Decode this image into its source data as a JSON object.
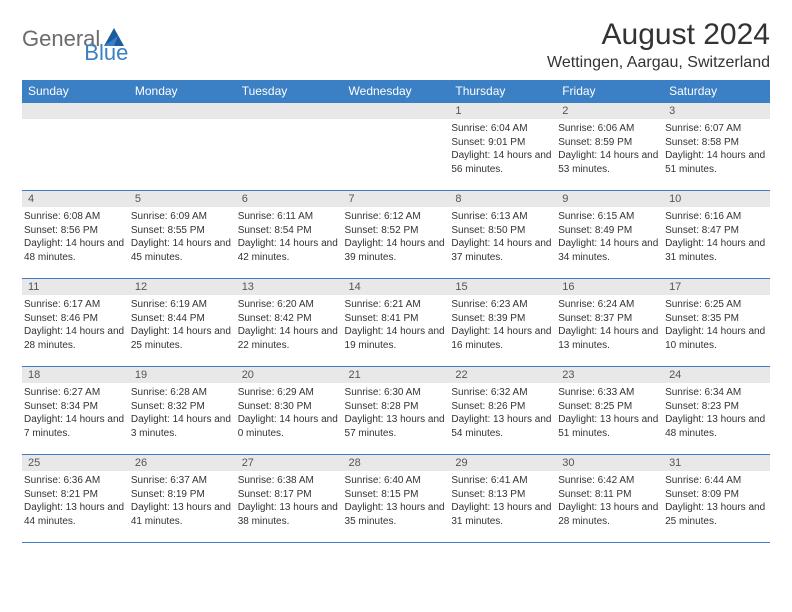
{
  "logo": {
    "general": "General",
    "blue": "Blue"
  },
  "title": "August 2024",
  "location": "Wettingen, Aargau, Switzerland",
  "colors": {
    "header_bg": "#3b7fc4",
    "header_text": "#ffffff",
    "daynum_bg": "#e8e8e8",
    "border": "#3b7fc4",
    "text": "#333333",
    "logo_gray": "#6b6b6b",
    "logo_blue": "#3b7fc4"
  },
  "day_headers": [
    "Sunday",
    "Monday",
    "Tuesday",
    "Wednesday",
    "Thursday",
    "Friday",
    "Saturday"
  ],
  "weeks": [
    [
      {
        "n": "",
        "sunrise": "",
        "sunset": "",
        "daylight": ""
      },
      {
        "n": "",
        "sunrise": "",
        "sunset": "",
        "daylight": ""
      },
      {
        "n": "",
        "sunrise": "",
        "sunset": "",
        "daylight": ""
      },
      {
        "n": "",
        "sunrise": "",
        "sunset": "",
        "daylight": ""
      },
      {
        "n": "1",
        "sunrise": "Sunrise: 6:04 AM",
        "sunset": "Sunset: 9:01 PM",
        "daylight": "Daylight: 14 hours and 56 minutes."
      },
      {
        "n": "2",
        "sunrise": "Sunrise: 6:06 AM",
        "sunset": "Sunset: 8:59 PM",
        "daylight": "Daylight: 14 hours and 53 minutes."
      },
      {
        "n": "3",
        "sunrise": "Sunrise: 6:07 AM",
        "sunset": "Sunset: 8:58 PM",
        "daylight": "Daylight: 14 hours and 51 minutes."
      }
    ],
    [
      {
        "n": "4",
        "sunrise": "Sunrise: 6:08 AM",
        "sunset": "Sunset: 8:56 PM",
        "daylight": "Daylight: 14 hours and 48 minutes."
      },
      {
        "n": "5",
        "sunrise": "Sunrise: 6:09 AM",
        "sunset": "Sunset: 8:55 PM",
        "daylight": "Daylight: 14 hours and 45 minutes."
      },
      {
        "n": "6",
        "sunrise": "Sunrise: 6:11 AM",
        "sunset": "Sunset: 8:54 PM",
        "daylight": "Daylight: 14 hours and 42 minutes."
      },
      {
        "n": "7",
        "sunrise": "Sunrise: 6:12 AM",
        "sunset": "Sunset: 8:52 PM",
        "daylight": "Daylight: 14 hours and 39 minutes."
      },
      {
        "n": "8",
        "sunrise": "Sunrise: 6:13 AM",
        "sunset": "Sunset: 8:50 PM",
        "daylight": "Daylight: 14 hours and 37 minutes."
      },
      {
        "n": "9",
        "sunrise": "Sunrise: 6:15 AM",
        "sunset": "Sunset: 8:49 PM",
        "daylight": "Daylight: 14 hours and 34 minutes."
      },
      {
        "n": "10",
        "sunrise": "Sunrise: 6:16 AM",
        "sunset": "Sunset: 8:47 PM",
        "daylight": "Daylight: 14 hours and 31 minutes."
      }
    ],
    [
      {
        "n": "11",
        "sunrise": "Sunrise: 6:17 AM",
        "sunset": "Sunset: 8:46 PM",
        "daylight": "Daylight: 14 hours and 28 minutes."
      },
      {
        "n": "12",
        "sunrise": "Sunrise: 6:19 AM",
        "sunset": "Sunset: 8:44 PM",
        "daylight": "Daylight: 14 hours and 25 minutes."
      },
      {
        "n": "13",
        "sunrise": "Sunrise: 6:20 AM",
        "sunset": "Sunset: 8:42 PM",
        "daylight": "Daylight: 14 hours and 22 minutes."
      },
      {
        "n": "14",
        "sunrise": "Sunrise: 6:21 AM",
        "sunset": "Sunset: 8:41 PM",
        "daylight": "Daylight: 14 hours and 19 minutes."
      },
      {
        "n": "15",
        "sunrise": "Sunrise: 6:23 AM",
        "sunset": "Sunset: 8:39 PM",
        "daylight": "Daylight: 14 hours and 16 minutes."
      },
      {
        "n": "16",
        "sunrise": "Sunrise: 6:24 AM",
        "sunset": "Sunset: 8:37 PM",
        "daylight": "Daylight: 14 hours and 13 minutes."
      },
      {
        "n": "17",
        "sunrise": "Sunrise: 6:25 AM",
        "sunset": "Sunset: 8:35 PM",
        "daylight": "Daylight: 14 hours and 10 minutes."
      }
    ],
    [
      {
        "n": "18",
        "sunrise": "Sunrise: 6:27 AM",
        "sunset": "Sunset: 8:34 PM",
        "daylight": "Daylight: 14 hours and 7 minutes."
      },
      {
        "n": "19",
        "sunrise": "Sunrise: 6:28 AM",
        "sunset": "Sunset: 8:32 PM",
        "daylight": "Daylight: 14 hours and 3 minutes."
      },
      {
        "n": "20",
        "sunrise": "Sunrise: 6:29 AM",
        "sunset": "Sunset: 8:30 PM",
        "daylight": "Daylight: 14 hours and 0 minutes."
      },
      {
        "n": "21",
        "sunrise": "Sunrise: 6:30 AM",
        "sunset": "Sunset: 8:28 PM",
        "daylight": "Daylight: 13 hours and 57 minutes."
      },
      {
        "n": "22",
        "sunrise": "Sunrise: 6:32 AM",
        "sunset": "Sunset: 8:26 PM",
        "daylight": "Daylight: 13 hours and 54 minutes."
      },
      {
        "n": "23",
        "sunrise": "Sunrise: 6:33 AM",
        "sunset": "Sunset: 8:25 PM",
        "daylight": "Daylight: 13 hours and 51 minutes."
      },
      {
        "n": "24",
        "sunrise": "Sunrise: 6:34 AM",
        "sunset": "Sunset: 8:23 PM",
        "daylight": "Daylight: 13 hours and 48 minutes."
      }
    ],
    [
      {
        "n": "25",
        "sunrise": "Sunrise: 6:36 AM",
        "sunset": "Sunset: 8:21 PM",
        "daylight": "Daylight: 13 hours and 44 minutes."
      },
      {
        "n": "26",
        "sunrise": "Sunrise: 6:37 AM",
        "sunset": "Sunset: 8:19 PM",
        "daylight": "Daylight: 13 hours and 41 minutes."
      },
      {
        "n": "27",
        "sunrise": "Sunrise: 6:38 AM",
        "sunset": "Sunset: 8:17 PM",
        "daylight": "Daylight: 13 hours and 38 minutes."
      },
      {
        "n": "28",
        "sunrise": "Sunrise: 6:40 AM",
        "sunset": "Sunset: 8:15 PM",
        "daylight": "Daylight: 13 hours and 35 minutes."
      },
      {
        "n": "29",
        "sunrise": "Sunrise: 6:41 AM",
        "sunset": "Sunset: 8:13 PM",
        "daylight": "Daylight: 13 hours and 31 minutes."
      },
      {
        "n": "30",
        "sunrise": "Sunrise: 6:42 AM",
        "sunset": "Sunset: 8:11 PM",
        "daylight": "Daylight: 13 hours and 28 minutes."
      },
      {
        "n": "31",
        "sunrise": "Sunrise: 6:44 AM",
        "sunset": "Sunset: 8:09 PM",
        "daylight": "Daylight: 13 hours and 25 minutes."
      }
    ]
  ]
}
